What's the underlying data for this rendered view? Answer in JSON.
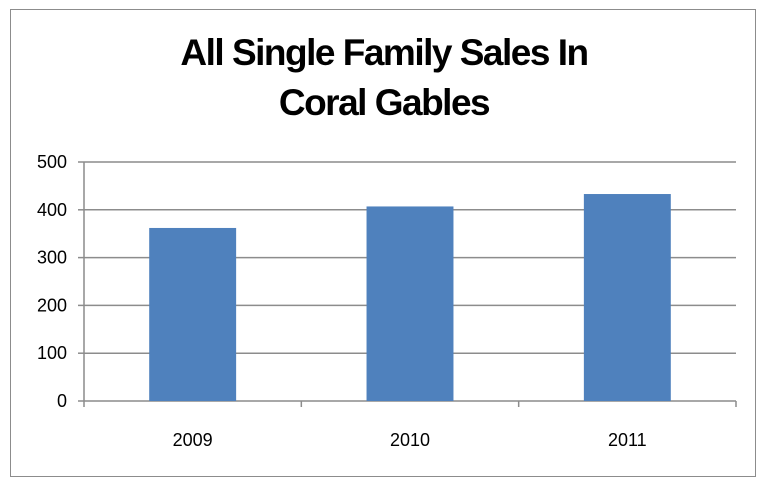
{
  "chart_data": {
    "type": "bar",
    "title_lines": [
      "All Single Family Sales In",
      "Coral Gables"
    ],
    "categories": [
      "2009",
      "2010",
      "2011"
    ],
    "values": [
      362,
      407,
      433
    ],
    "ylim": [
      0,
      500
    ],
    "yticks": [
      0,
      100,
      200,
      300,
      400,
      500
    ],
    "grid": true,
    "legend": "none",
    "bar_color": "#4f81bd",
    "xlabel": "",
    "ylabel": ""
  }
}
